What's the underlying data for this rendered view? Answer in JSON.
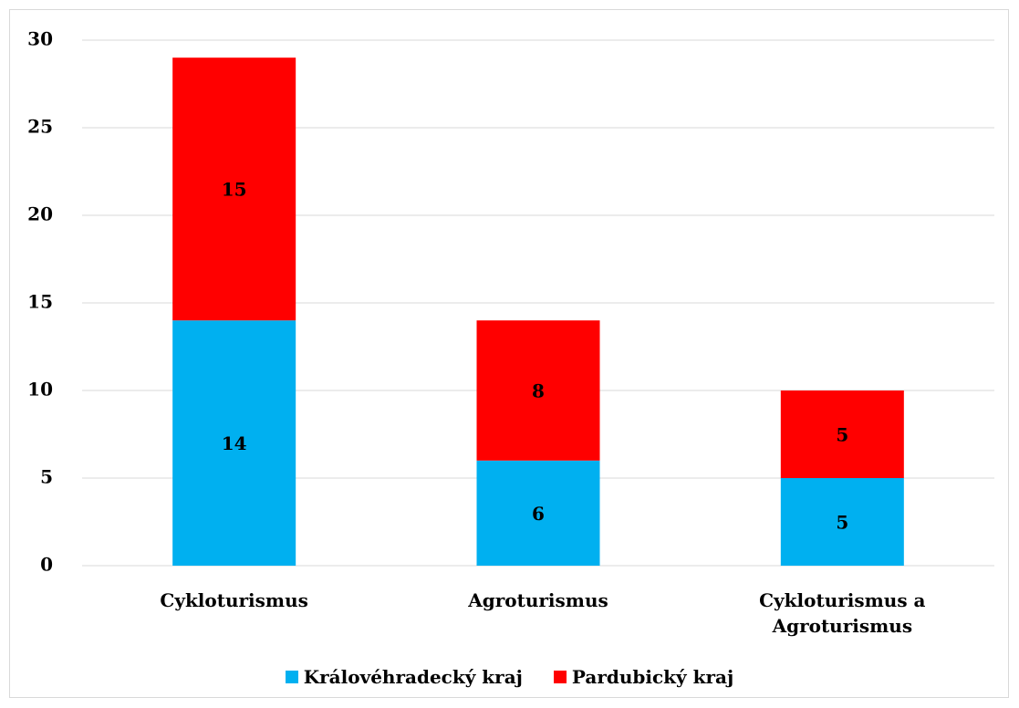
{
  "chart_data": {
    "type": "stacked_bar",
    "categories": [
      "Cykloturismus",
      "Agroturismus",
      "Cykloturismus a Agroturismus"
    ],
    "series": [
      {
        "name": "Královéhradecký kraj",
        "color": "#00b0f0",
        "values": [
          14,
          6,
          5
        ]
      },
      {
        "name": "Pardubický kraj",
        "color": "#ff0000",
        "values": [
          15,
          8,
          5
        ]
      }
    ],
    "ylim": [
      0,
      30
    ],
    "yticks": [
      0,
      5,
      10,
      15,
      20,
      25,
      30
    ],
    "grid": true,
    "legend": "bottom"
  }
}
